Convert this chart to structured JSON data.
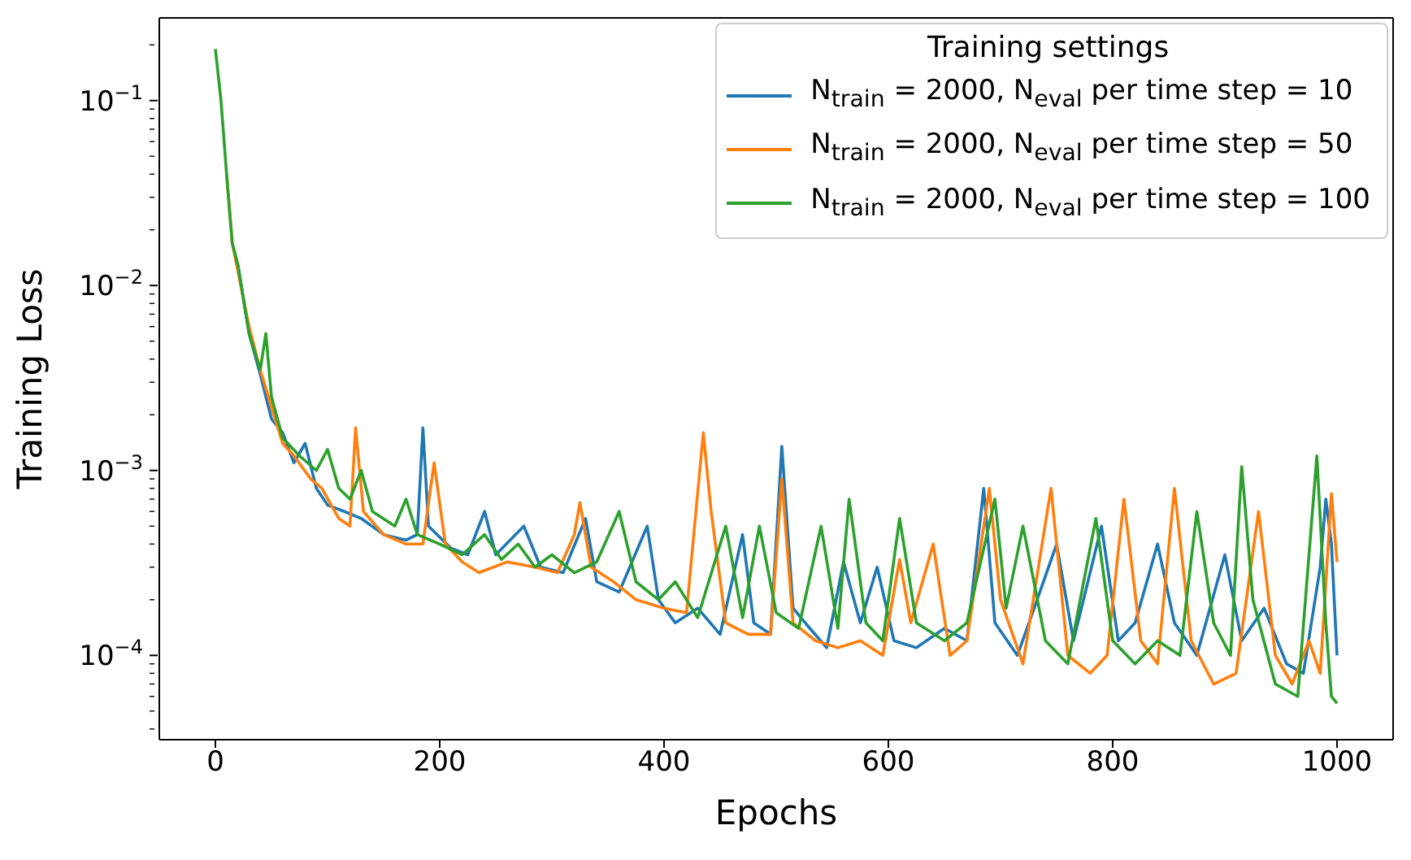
{
  "chart_data": {
    "type": "line",
    "xlabel": "Epochs",
    "ylabel": "Training Loss",
    "legend_title": "Training settings",
    "legend": "top right",
    "log": "y",
    "grid": false,
    "xlim": [
      -50,
      1050
    ],
    "xticks": [
      0,
      200,
      400,
      600,
      800,
      1000
    ],
    "ylim": [
      3.5e-05,
      0.28
    ],
    "yticks": [
      {
        "value": 4e-05,
        "label": null
      },
      {
        "value": 5e-05,
        "label": null
      },
      {
        "value": 6e-05,
        "label": null
      },
      {
        "value": 7e-05,
        "label": null
      },
      {
        "value": 8e-05,
        "label": null
      },
      {
        "value": 9e-05,
        "label": null
      },
      {
        "value": 0.0001,
        "label": "10$^{−4}$"
      },
      {
        "value": 0.0002,
        "label": null
      },
      {
        "value": 0.0003,
        "label": null
      },
      {
        "value": 0.0004,
        "label": null
      },
      {
        "value": 0.0005,
        "label": null
      },
      {
        "value": 0.0006,
        "label": null
      },
      {
        "value": 0.0007,
        "label": null
      },
      {
        "value": 0.0008,
        "label": null
      },
      {
        "value": 0.0009,
        "label": null
      },
      {
        "value": 0.001,
        "label": "10$^{−3}$"
      },
      {
        "value": 0.002,
        "label": null
      },
      {
        "value": 0.003,
        "label": null
      },
      {
        "value": 0.004,
        "label": null
      },
      {
        "value": 0.005,
        "label": null
      },
      {
        "value": 0.006,
        "label": null
      },
      {
        "value": 0.007,
        "label": null
      },
      {
        "value": 0.008,
        "label": null
      },
      {
        "value": 0.009,
        "label": null
      },
      {
        "value": 0.01,
        "label": "10$^{−2}$"
      },
      {
        "value": 0.02,
        "label": null
      },
      {
        "value": 0.03,
        "label": null
      },
      {
        "value": 0.04,
        "label": null
      },
      {
        "value": 0.05,
        "label": null
      },
      {
        "value": 0.06,
        "label": null
      },
      {
        "value": 0.07,
        "label": null
      },
      {
        "value": 0.08,
        "label": null
      },
      {
        "value": 0.09,
        "label": null
      },
      {
        "value": 0.1,
        "label": "10$^{−1}$"
      },
      {
        "value": 0.2,
        "label": null
      }
    ],
    "series": [
      {
        "name": "N$_{train}$ = 2000, N$_{eval}$ per time step  = 10",
        "color": "#1f77b4",
        "x": [
          20,
          30,
          40,
          50,
          60,
          70,
          80,
          90,
          100,
          115,
          130,
          150,
          170,
          180,
          185,
          190,
          210,
          225,
          240,
          250,
          275,
          290,
          310,
          330,
          340,
          360,
          385,
          395,
          410,
          430,
          450,
          470,
          480,
          495,
          505,
          515,
          530,
          545,
          560,
          575,
          590,
          605,
          625,
          650,
          670,
          685,
          695,
          715,
          730,
          750,
          765,
          790,
          805,
          820,
          840,
          855,
          875,
          900,
          915,
          935,
          955,
          970,
          985,
          990,
          995,
          1000
        ],
        "values": [
          0.013,
          0.0055,
          0.0033,
          0.0019,
          0.0016,
          0.0011,
          0.0014,
          0.0008,
          0.00065,
          0.0006,
          0.00055,
          0.00045,
          0.00042,
          0.00045,
          0.0017,
          0.0005,
          0.00038,
          0.00035,
          0.0006,
          0.00035,
          0.0005,
          0.0003,
          0.00028,
          0.00055,
          0.00025,
          0.00022,
          0.0005,
          0.0002,
          0.00015,
          0.00018,
          0.00013,
          0.00045,
          0.00015,
          0.00013,
          0.00135,
          0.00018,
          0.00014,
          0.00011,
          0.00032,
          0.00015,
          0.0003,
          0.00012,
          0.00011,
          0.00014,
          0.00012,
          0.0008,
          0.00015,
          0.0001,
          0.00018,
          0.0004,
          0.00012,
          0.0005,
          0.00012,
          0.00015,
          0.0004,
          0.00015,
          0.0001,
          0.00035,
          0.00012,
          0.00018,
          9e-05,
          8e-05,
          0.0003,
          0.0007,
          0.0004,
          0.0001
        ]
      },
      {
        "name": "N$_{train}$ = 2000, N$_{eval}$ per time step  = 50",
        "color": "#ff7f0e",
        "x": [
          10,
          15,
          20,
          30,
          40,
          50,
          60,
          70,
          85,
          95,
          110,
          120,
          125,
          132,
          150,
          170,
          185,
          195,
          205,
          220,
          235,
          260,
          285,
          305,
          320,
          325,
          335,
          355,
          375,
          400,
          420,
          435,
          442,
          455,
          475,
          495,
          505,
          515,
          535,
          555,
          575,
          595,
          610,
          620,
          640,
          655,
          670,
          690,
          700,
          720,
          745,
          760,
          780,
          795,
          810,
          825,
          840,
          855,
          870,
          890,
          910,
          930,
          945,
          960,
          975,
          985,
          995,
          1000
        ],
        "values": [
          0.04,
          0.017,
          0.012,
          0.006,
          0.0035,
          0.0022,
          0.0014,
          0.0012,
          0.0009,
          0.0008,
          0.00055,
          0.0005,
          0.0017,
          0.0006,
          0.00045,
          0.0004,
          0.0004,
          0.0011,
          0.0004,
          0.00032,
          0.00028,
          0.00032,
          0.0003,
          0.00028,
          0.00045,
          0.00067,
          0.0003,
          0.00025,
          0.0002,
          0.00018,
          0.00017,
          0.0016,
          0.0006,
          0.00015,
          0.00013,
          0.00013,
          0.0009,
          0.00015,
          0.00012,
          0.00011,
          0.00012,
          0.0001,
          0.00033,
          0.00015,
          0.0004,
          0.0001,
          0.00012,
          0.0008,
          0.0002,
          9e-05,
          0.0008,
          0.0001,
          8e-05,
          0.0001,
          0.0007,
          0.00012,
          9e-05,
          0.0008,
          0.00012,
          7e-05,
          8e-05,
          0.0006,
          0.0001,
          7e-05,
          0.00012,
          8e-05,
          0.00075,
          0.00032
        ]
      },
      {
        "name": "N$_{train}$ = 2000, N$_{eval}$ per time step  = 100",
        "color": "#2ca02c",
        "x": [
          0,
          5,
          10,
          15,
          20,
          30,
          40,
          45,
          50,
          60,
          75,
          90,
          100,
          110,
          120,
          130,
          140,
          160,
          170,
          180,
          200,
          220,
          240,
          255,
          270,
          285,
          300,
          320,
          340,
          360,
          375,
          395,
          410,
          430,
          455,
          470,
          485,
          500,
          520,
          540,
          555,
          565,
          580,
          595,
          610,
          625,
          650,
          670,
          695,
          705,
          720,
          740,
          760,
          785,
          800,
          820,
          840,
          860,
          875,
          890,
          905,
          915,
          925,
          945,
          965,
          982,
          990,
          995,
          1000
        ],
        "values": [
          0.19,
          0.1,
          0.04,
          0.017,
          0.013,
          0.0055,
          0.0035,
          0.0055,
          0.0025,
          0.0015,
          0.0012,
          0.001,
          0.0013,
          0.0008,
          0.0007,
          0.001,
          0.0006,
          0.0005,
          0.0007,
          0.00045,
          0.0004,
          0.00035,
          0.00045,
          0.00033,
          0.0004,
          0.0003,
          0.00035,
          0.00028,
          0.00032,
          0.0006,
          0.00025,
          0.0002,
          0.00025,
          0.00016,
          0.0005,
          0.00016,
          0.0005,
          0.00017,
          0.00014,
          0.0005,
          0.00014,
          0.0007,
          0.00015,
          0.00012,
          0.00055,
          0.00015,
          0.00012,
          0.00015,
          0.0007,
          0.00018,
          0.0005,
          0.00012,
          9e-05,
          0.00055,
          0.00012,
          9e-05,
          0.00012,
          0.0001,
          0.0006,
          0.00015,
          0.0001,
          0.00105,
          0.0002,
          7e-05,
          6e-05,
          0.0012,
          0.00015,
          6e-05,
          5.5e-05
        ]
      }
    ]
  }
}
